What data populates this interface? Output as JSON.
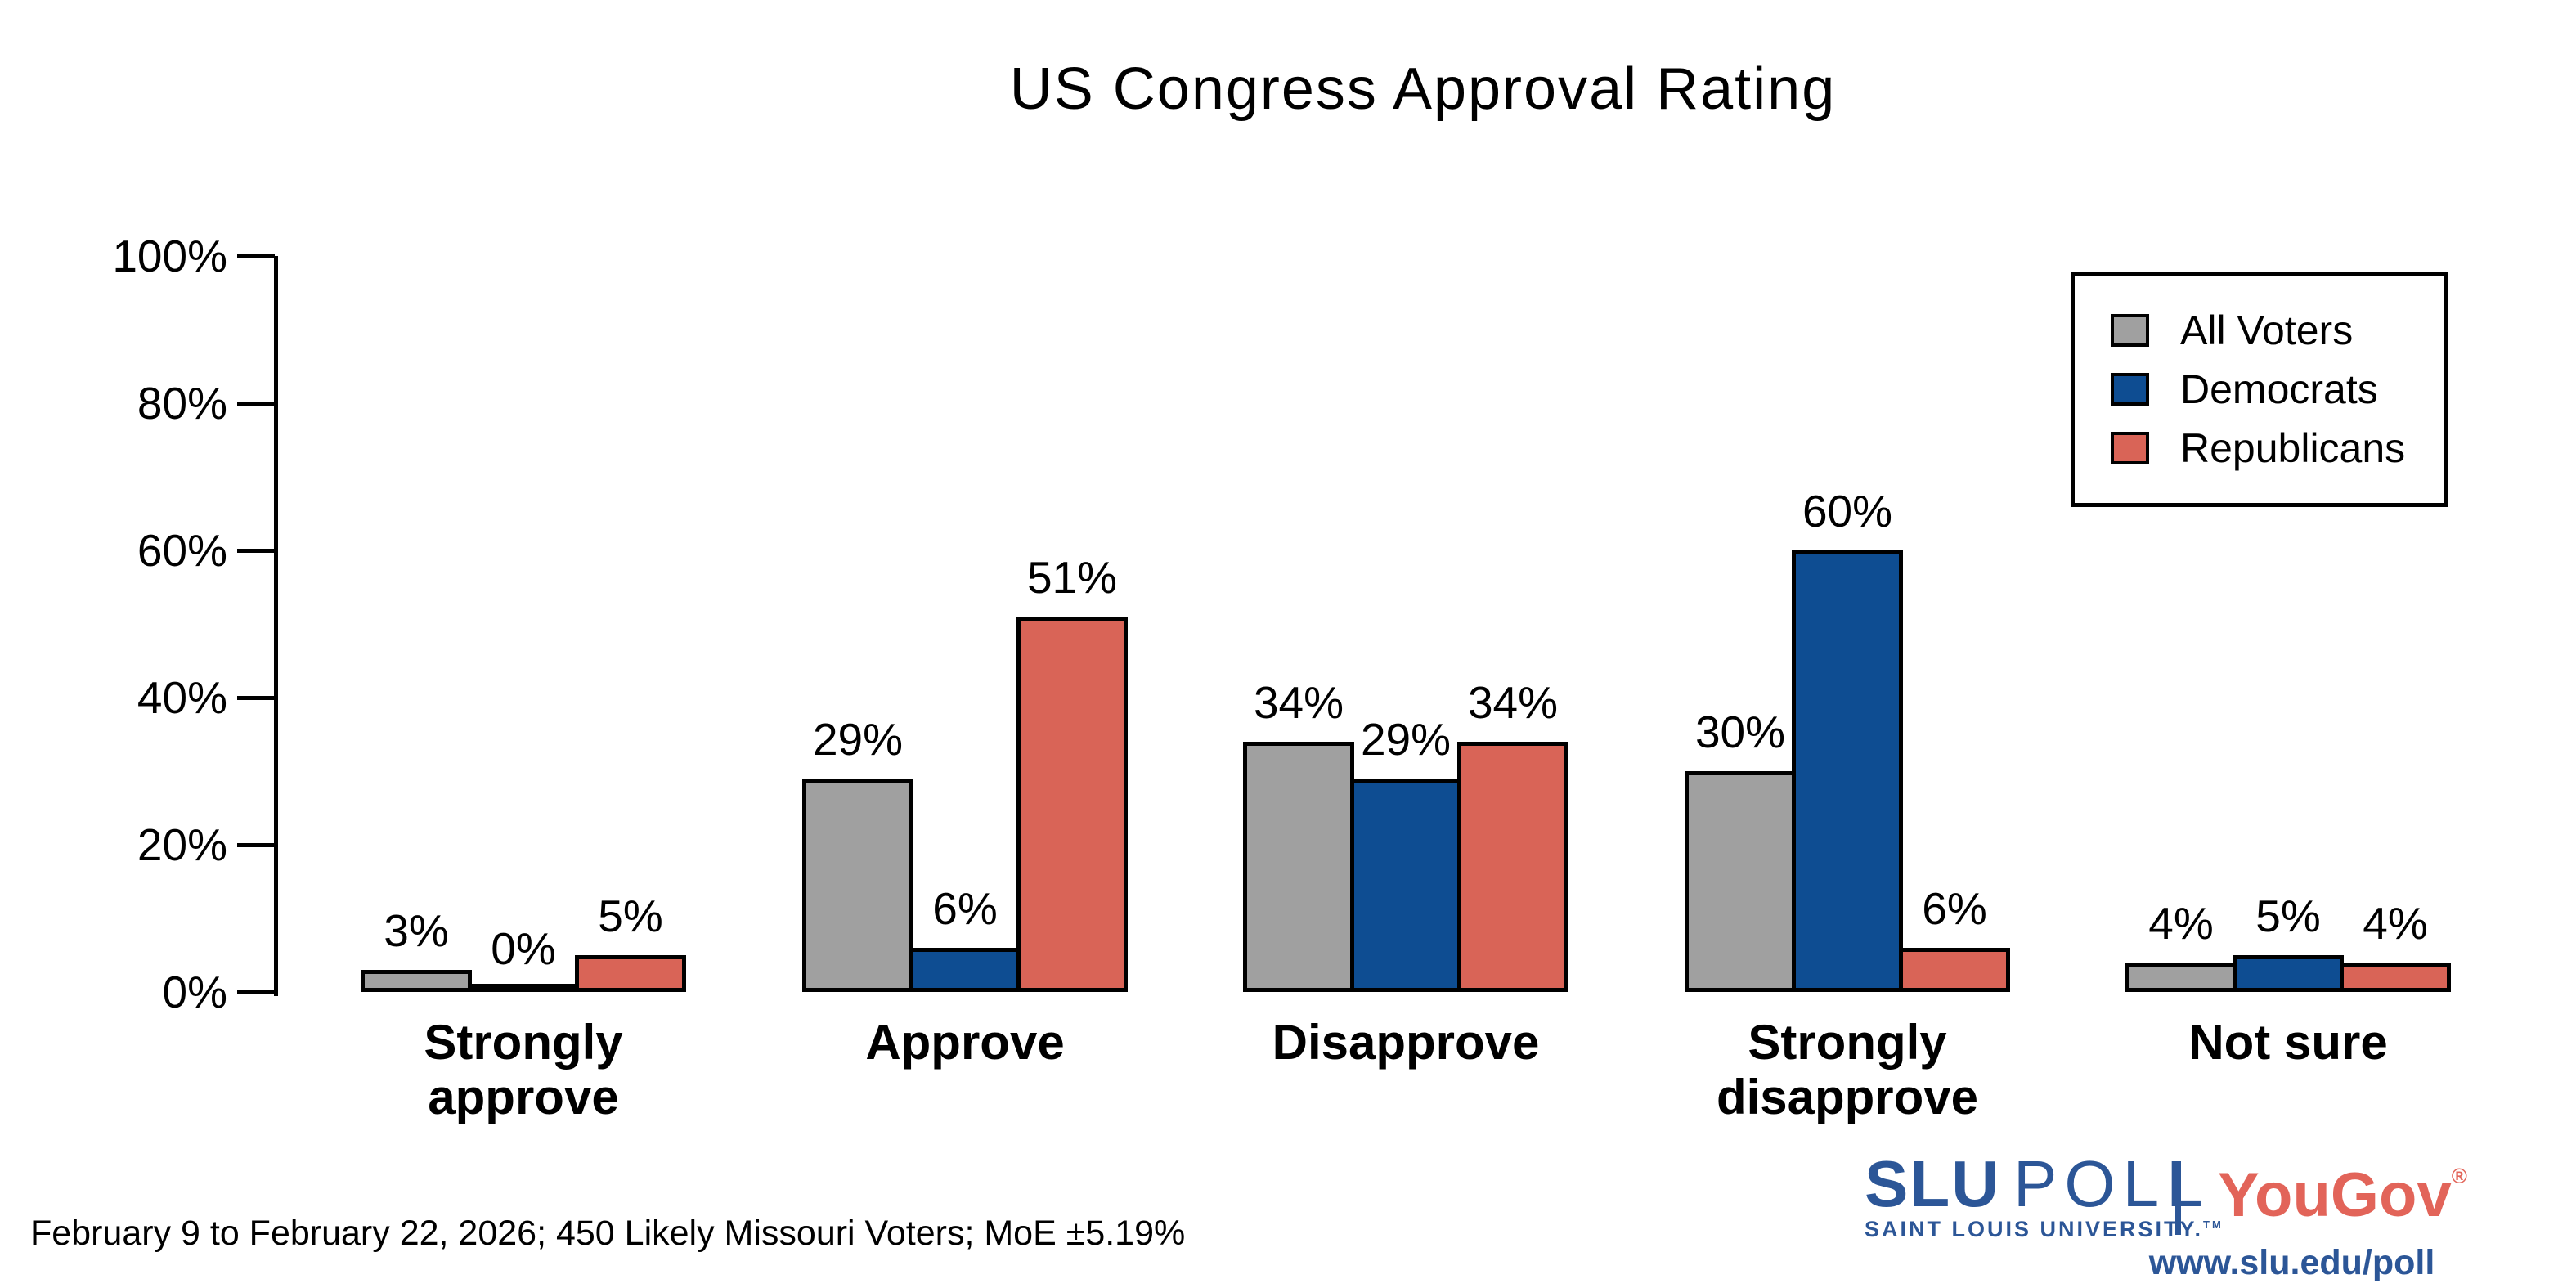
{
  "chart_data": {
    "type": "bar",
    "title": "US Congress Approval Rating",
    "categories": [
      "Strongly approve",
      "Approve",
      "Disapprove",
      "Strongly disapprove",
      "Not sure"
    ],
    "category_display": [
      "Strongly\napprove",
      "Approve",
      "Disapprove",
      "Strongly\ndisapprove",
      "Not sure"
    ],
    "series": [
      {
        "name": "All Voters",
        "color": "#a0a0a0",
        "values": [
          3,
          29,
          34,
          30,
          4
        ]
      },
      {
        "name": "Democrats",
        "color": "#0e4d92",
        "values": [
          0,
          6,
          29,
          60,
          5
        ]
      },
      {
        "name": "Republicans",
        "color": "#d96457",
        "values": [
          5,
          51,
          34,
          6,
          4
        ]
      }
    ],
    "value_suffix": "%",
    "xlabel": "",
    "ylabel": "",
    "ylim": [
      0,
      100
    ],
    "yticks": [
      0,
      20,
      40,
      60,
      80,
      100
    ],
    "ytick_labels": [
      "0%",
      "20%",
      "40%",
      "60%",
      "80%",
      "100%"
    ],
    "grid": false,
    "legend_position": "upper right",
    "bar_edge_color": "#000000"
  },
  "footer": {
    "note": "February 9 to February 22, 2026; 450 Likely Missouri Voters; MoE ±5.19%"
  },
  "branding": {
    "slu": "SLU",
    "poll": "POLL",
    "tagline": "SAINT LOUIS UNIVERSITY.",
    "tagline_tm": "TM",
    "yougov": "YouGov",
    "yougov_reg": "®",
    "url": "www.slu.edu/poll",
    "slu_blue": "#2c5697",
    "yougov_red": "#e26459"
  }
}
